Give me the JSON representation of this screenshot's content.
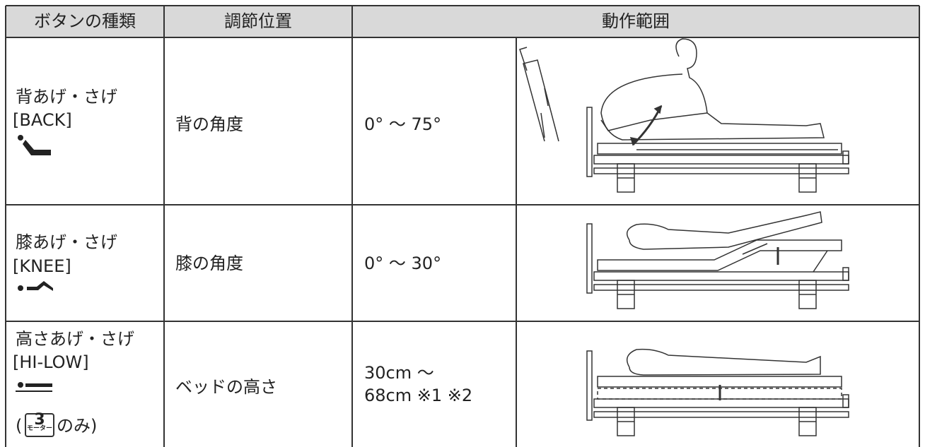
{
  "header": {
    "columns": [
      "ボタンの種類",
      "調節位置",
      "動作範囲"
    ]
  },
  "table": {
    "rows": [
      {
        "button": [
          "背あげ・さげ",
          "[BACK]"
        ],
        "position": "背の角度",
        "range": [
          "0° ～ 75°"
        ]
      },
      {
        "button": [
          "膝あげ・さげ",
          "[KNEE]"
        ],
        "position": "膝の角度",
        "range": [
          "0° ～ 30°"
        ]
      },
      {
        "button": [
          "高さあげ・さげ",
          "[HI-LOW]"
        ],
        "note": {
          "open": "(",
          "badge_number": "3",
          "badge_text": "モーター",
          "close": "のみ)"
        },
        "position": "ベッドの高さ",
        "range": [
          "30cm ～",
          "68cm ※1 ※2"
        ]
      }
    ]
  }
}
